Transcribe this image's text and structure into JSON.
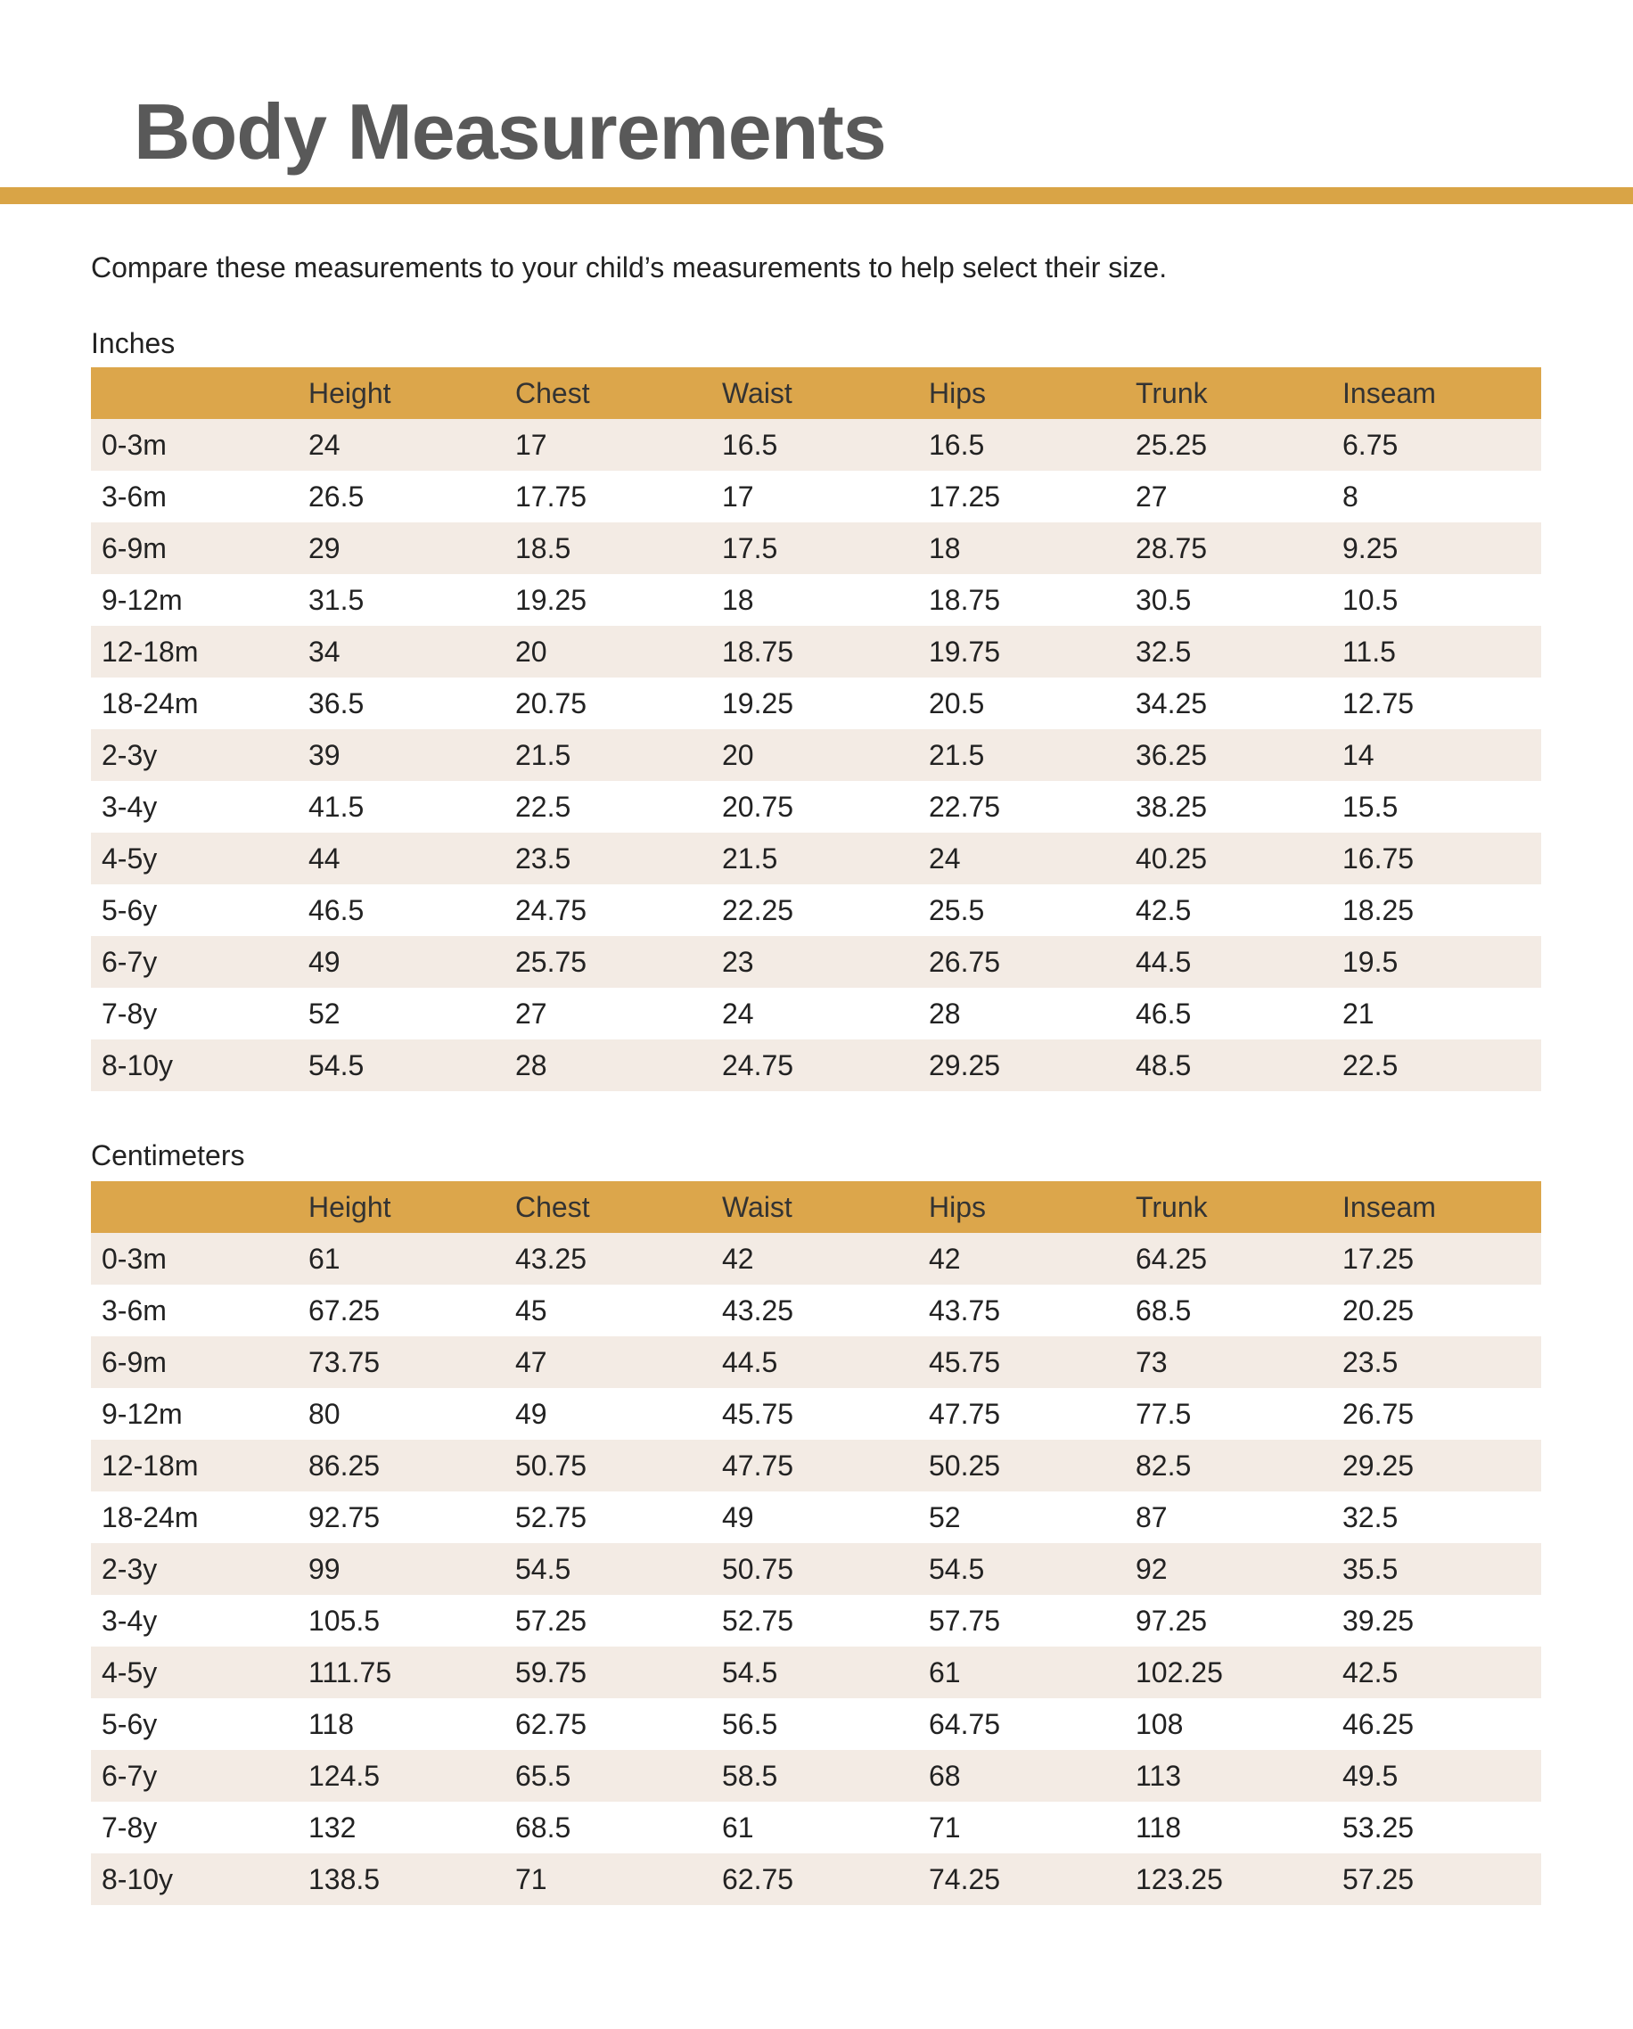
{
  "header": {
    "title": "Body Measurements"
  },
  "intro": "Compare these measurements to your child’s measurements to help select their size.",
  "tables": [
    {
      "label": "Inches",
      "columns": [
        "Height",
        "Chest",
        "Waist",
        "Hips",
        "Trunk",
        "Inseam"
      ],
      "rows": [
        [
          "0-3m",
          24,
          17,
          16.5,
          16.5,
          25.25,
          6.75
        ],
        [
          "3-6m",
          26.5,
          17.75,
          17,
          17.25,
          27,
          8
        ],
        [
          "6-9m",
          29,
          18.5,
          17.5,
          18,
          28.75,
          9.25
        ],
        [
          "9-12m",
          31.5,
          19.25,
          18,
          18.75,
          30.5,
          10.5
        ],
        [
          "12-18m",
          34,
          20,
          18.75,
          19.75,
          32.5,
          11.5
        ],
        [
          "18-24m",
          36.5,
          20.75,
          19.25,
          20.5,
          34.25,
          12.75
        ],
        [
          "2-3y",
          39,
          21.5,
          20,
          21.5,
          36.25,
          14
        ],
        [
          "3-4y",
          41.5,
          22.5,
          20.75,
          22.75,
          38.25,
          15.5
        ],
        [
          "4-5y",
          44,
          23.5,
          21.5,
          24,
          40.25,
          16.75
        ],
        [
          "5-6y",
          46.5,
          24.75,
          22.25,
          25.5,
          42.5,
          18.25
        ],
        [
          "6-7y",
          49,
          25.75,
          23,
          26.75,
          44.5,
          19.5
        ],
        [
          "7-8y",
          52,
          27,
          24,
          28,
          46.5,
          21
        ],
        [
          "8-10y",
          54.5,
          28,
          24.75,
          29.25,
          48.5,
          22.5
        ]
      ]
    },
    {
      "label": "Centimeters",
      "columns": [
        "Height",
        "Chest",
        "Waist",
        "Hips",
        "Trunk",
        "Inseam"
      ],
      "rows": [
        [
          "0-3m",
          61,
          43.25,
          42,
          42,
          64.25,
          17.25
        ],
        [
          "3-6m",
          67.25,
          45,
          43.25,
          43.75,
          68.5,
          20.25
        ],
        [
          "6-9m",
          73.75,
          47,
          44.5,
          45.75,
          73,
          23.5
        ],
        [
          "9-12m",
          80,
          49,
          45.75,
          47.75,
          77.5,
          26.75
        ],
        [
          "12-18m",
          86.25,
          50.75,
          47.75,
          50.25,
          82.5,
          29.25
        ],
        [
          "18-24m",
          92.75,
          52.75,
          49,
          52,
          87,
          32.5
        ],
        [
          "2-3y",
          99,
          54.5,
          50.75,
          54.5,
          92,
          35.5
        ],
        [
          "3-4y",
          105.5,
          57.25,
          52.75,
          57.75,
          97.25,
          39.25
        ],
        [
          "4-5y",
          111.75,
          59.75,
          54.5,
          61,
          102.25,
          42.5
        ],
        [
          "5-6y",
          118,
          62.75,
          56.5,
          64.75,
          108,
          46.25
        ],
        [
          "6-7y",
          124.5,
          65.5,
          58.5,
          68,
          113,
          49.5
        ],
        [
          "7-8y",
          132,
          68.5,
          61,
          71,
          118,
          53.25
        ],
        [
          "8-10y",
          138.5,
          71,
          62.75,
          74.25,
          123.25,
          57.25
        ]
      ]
    }
  ]
}
